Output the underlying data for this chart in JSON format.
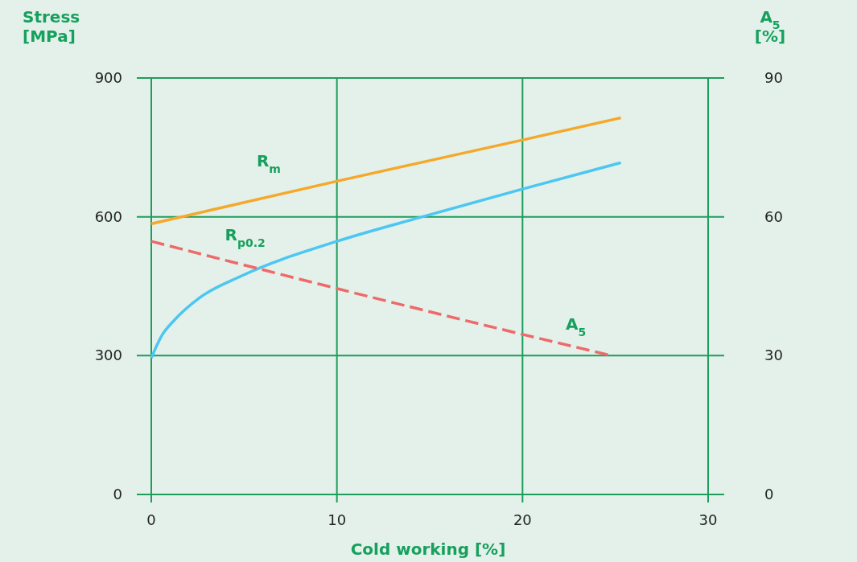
{
  "chart_data": {
    "type": "line",
    "xlabel": "Cold working [%]",
    "ylabel": "Stress [MPa]",
    "y2label": "A$_{5}$ [%]",
    "xlim": [
      0,
      30
    ],
    "xticks": [
      0,
      10,
      20,
      30
    ],
    "ylim": [
      0,
      900
    ],
    "yticks": [
      0,
      300,
      600,
      900
    ],
    "y2lim": [
      0,
      90
    ],
    "y2ticks": [
      0,
      30,
      60,
      90
    ],
    "grid": true,
    "series": [
      {
        "name": "R$_{m}$",
        "color": "#f5a82a",
        "x": [
          0,
          10,
          20,
          25.3
        ],
        "values": [
          585,
          677,
          766,
          814
        ],
        "line_style": "solid"
      },
      {
        "name": "R$_{p0.2}$",
        "color": "#4cc6f2",
        "x": [
          0,
          0.56,
          1.25,
          2.6,
          4.9,
          10,
          14.6,
          20,
          25.3
        ],
        "values": [
          295,
          343,
          377,
          425,
          473,
          547,
          600,
          660,
          717
        ],
        "line_style": "solid"
      },
      {
        "name": "A$_{5}$",
        "color": "#ee6a6a",
        "axis": "y2",
        "x": [
          0,
          20,
          24.6
        ],
        "values": [
          54.7,
          34.6,
          30.2
        ],
        "line_style": "dashed"
      }
    ]
  }
}
